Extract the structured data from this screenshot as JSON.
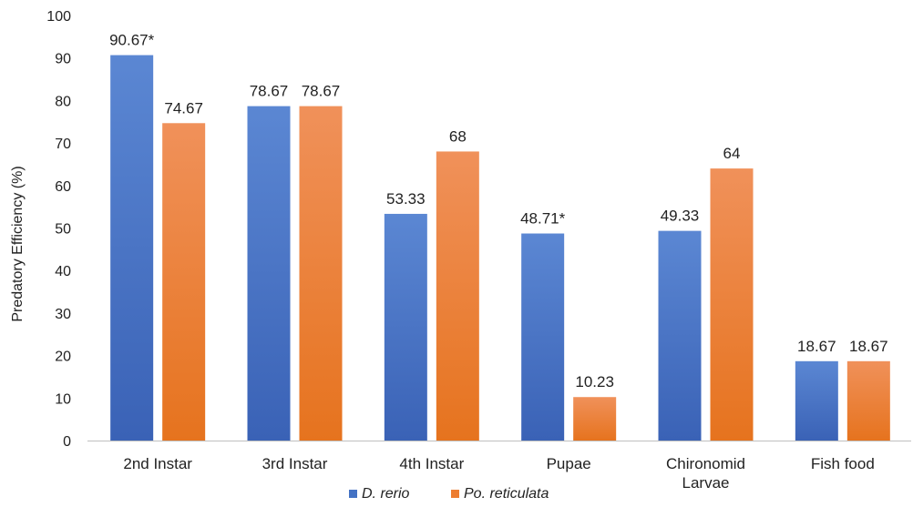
{
  "chart_data": {
    "type": "bar",
    "title": "",
    "xlabel": "",
    "ylabel": "Predatory Efficiency (%)",
    "ylim": [
      0,
      100
    ],
    "yticks": [
      0,
      10,
      20,
      30,
      40,
      50,
      60,
      70,
      80,
      90,
      100
    ],
    "grid": false,
    "legend_position": "bottom",
    "categories": [
      "2nd Instar",
      "3rd Instar",
      "4th Instar",
      "Pupae",
      "Chironomid Larvae",
      "Fish food"
    ],
    "category_lines": [
      [
        "2nd Instar"
      ],
      [
        "3rd Instar"
      ],
      [
        "4th Instar"
      ],
      [
        "Pupae"
      ],
      [
        "Chironomid",
        "Larvae"
      ],
      [
        "Fish food"
      ]
    ],
    "series": [
      {
        "name": "D. rerio",
        "color": "#4472C4",
        "values": [
          90.67,
          78.67,
          53.33,
          48.71,
          49.33,
          18.67
        ],
        "labels": [
          "90.67*",
          "78.67",
          "53.33",
          "48.71*",
          "49.33",
          "18.67"
        ]
      },
      {
        "name": "Po. reticulata",
        "color": "#ED7D31",
        "values": [
          74.67,
          78.67,
          68,
          10.23,
          64,
          18.67
        ],
        "labels": [
          "74.67",
          "78.67",
          "68",
          "10.23",
          "64",
          "18.67"
        ]
      }
    ]
  }
}
